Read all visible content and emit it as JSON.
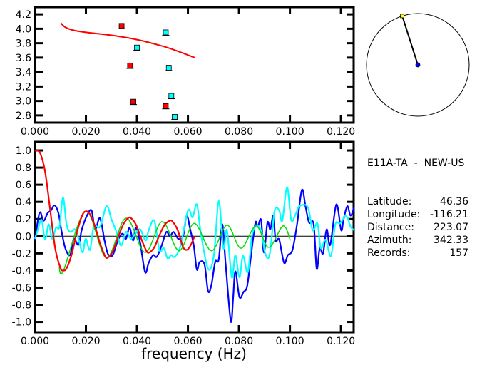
{
  "station": {
    "title": "E11A-TA  -  NEW-US",
    "rows": [
      {
        "label": "Latitude:",
        "value": "46.36"
      },
      {
        "label": "Longitude:",
        "value": "-116.21"
      },
      {
        "label": "Distance:",
        "value": "223.07"
      },
      {
        "label": "Azimuth:",
        "value": "342.33"
      },
      {
        "label": "Records:",
        "value": "157"
      }
    ],
    "azimuth_deg": 342.33,
    "station_color": "#ffff00",
    "center_color": "#0000ff"
  },
  "chart_data": [
    {
      "type": "scatter",
      "xlim": [
        0,
        0.125
      ],
      "ylim": [
        2.7,
        4.3
      ],
      "xticks": [
        "0.000",
        "0.020",
        "0.040",
        "0.060",
        "0.080",
        "0.100",
        "0.120"
      ],
      "yticks": [
        "2.8",
        "3.0",
        "3.2",
        "3.4",
        "3.6",
        "3.8",
        "4.0",
        "4.2"
      ],
      "curve": {
        "color": "#ff0000",
        "points": [
          [
            0.0101,
            4.08
          ],
          [
            0.012,
            4.02
          ],
          [
            0.015,
            3.98
          ],
          [
            0.02,
            3.95
          ],
          [
            0.03,
            3.91
          ],
          [
            0.04,
            3.85
          ],
          [
            0.05,
            3.76
          ],
          [
            0.056,
            3.69
          ],
          [
            0.0627,
            3.6
          ]
        ]
      },
      "series": [
        {
          "color": "#ff0000",
          "points": [
            [
              0.034,
              4.04
            ],
            [
              0.0373,
              3.49
            ],
            [
              0.0386,
              2.99
            ],
            [
              0.0513,
              2.93
            ]
          ]
        },
        {
          "color": "#00ffff",
          "points": [
            [
              0.0513,
              3.95
            ],
            [
              0.04,
              3.74
            ],
            [
              0.0525,
              3.46
            ],
            [
              0.0535,
              3.07
            ],
            [
              0.0548,
              2.78
            ]
          ]
        }
      ]
    },
    {
      "type": "line",
      "xlabel": "frequency (Hz)",
      "xlim": [
        0,
        0.125
      ],
      "ylim": [
        -1.12,
        1.1
      ],
      "xticks": [
        "0.000",
        "0.020",
        "0.040",
        "0.060",
        "0.080",
        "0.100",
        "0.120"
      ],
      "yticks": [
        "-1.0",
        "-0.8",
        "-0.6",
        "-0.4",
        "-0.2",
        "0.0",
        "0.2",
        "0.4",
        "0.6",
        "0.8",
        "1.0"
      ],
      "zero_line": true,
      "series": [
        {
          "color": "#0000ff",
          "points": [
            [
              0,
              -0.05
            ],
            [
              0.0012,
              0.19
            ],
            [
              0.0021,
              0.28
            ],
            [
              0.0034,
              0.18
            ],
            [
              0.005,
              0.27
            ],
            [
              0.0063,
              0.3
            ],
            [
              0.0077,
              0.36
            ],
            [
              0.0092,
              0.27
            ],
            [
              0.0105,
              0.05
            ],
            [
              0.0119,
              -0.14
            ],
            [
              0.0138,
              -0.22
            ],
            [
              0.0152,
              -0.03
            ],
            [
              0.0171,
              -0.1
            ],
            [
              0.0184,
              0.08
            ],
            [
              0.0204,
              0.24
            ],
            [
              0.0222,
              0.3
            ],
            [
              0.0236,
              0.08
            ],
            [
              0.0255,
              0.21
            ],
            [
              0.0273,
              -0.05
            ],
            [
              0.0287,
              -0.21
            ],
            [
              0.0305,
              -0.22
            ],
            [
              0.0325,
              -0.05
            ],
            [
              0.0343,
              0.03
            ],
            [
              0.0357,
              -0.03
            ],
            [
              0.0371,
              0.1
            ],
            [
              0.0385,
              -0.05
            ],
            [
              0.0396,
              0.1
            ],
            [
              0.0413,
              -0.08
            ],
            [
              0.0432,
              -0.42
            ],
            [
              0.0446,
              -0.31
            ],
            [
              0.0464,
              -0.22
            ],
            [
              0.0478,
              -0.24
            ],
            [
              0.0497,
              -0.11
            ],
            [
              0.0515,
              0.05
            ],
            [
              0.0529,
              0.0
            ],
            [
              0.0544,
              0.05
            ],
            [
              0.0562,
              -0.03
            ],
            [
              0.0581,
              0.0
            ],
            [
              0.0595,
              0.24
            ],
            [
              0.0609,
              0.08
            ],
            [
              0.0623,
              -0.11
            ],
            [
              0.0635,
              -0.39
            ],
            [
              0.0646,
              -0.3
            ],
            [
              0.0665,
              -0.33
            ],
            [
              0.0679,
              -0.64
            ],
            [
              0.0692,
              -0.57
            ],
            [
              0.0707,
              -0.3
            ],
            [
              0.0721,
              -0.27
            ],
            [
              0.0735,
              0.14
            ],
            [
              0.0748,
              -0.33
            ],
            [
              0.0768,
              -0.99
            ],
            [
              0.0777,
              -0.73
            ],
            [
              0.0786,
              -0.41
            ],
            [
              0.0802,
              -0.71
            ],
            [
              0.0818,
              -0.65
            ],
            [
              0.0833,
              -0.57
            ],
            [
              0.0851,
              -0.14
            ],
            [
              0.0865,
              0.16
            ],
            [
              0.0874,
              0.11
            ],
            [
              0.0887,
              0.19
            ],
            [
              0.0898,
              -0.19
            ],
            [
              0.0912,
              0.16
            ],
            [
              0.0923,
              0.08
            ],
            [
              0.0935,
              0.24
            ],
            [
              0.0944,
              -0.05
            ],
            [
              0.0958,
              -0.04
            ],
            [
              0.0977,
              -0.31
            ],
            [
              0.0992,
              -0.22
            ],
            [
              0.101,
              -0.16
            ],
            [
              0.1028,
              0.14
            ],
            [
              0.1047,
              0.54
            ],
            [
              0.1061,
              0.35
            ],
            [
              0.1075,
              0.16
            ],
            [
              0.1093,
              0.14
            ],
            [
              0.1105,
              -0.38
            ],
            [
              0.1117,
              -0.14
            ],
            [
              0.113,
              -0.2
            ],
            [
              0.1144,
              0.08
            ],
            [
              0.1158,
              -0.1
            ],
            [
              0.1182,
              0.37
            ],
            [
              0.1201,
              0.07
            ],
            [
              0.121,
              0.19
            ],
            [
              0.1225,
              0.35
            ],
            [
              0.1238,
              0.24
            ],
            [
              0.1252,
              0.34
            ]
          ]
        },
        {
          "color": "#00ffff",
          "points": [
            [
              0,
              -0.03
            ],
            [
              0.0012,
              0.08
            ],
            [
              0.0026,
              0.19
            ],
            [
              0.004,
              -0.04
            ],
            [
              0.0054,
              0.14
            ],
            [
              0.0068,
              -0.03
            ],
            [
              0.0082,
              0.1
            ],
            [
              0.0096,
              0.11
            ],
            [
              0.011,
              0.45
            ],
            [
              0.0124,
              0.14
            ],
            [
              0.0138,
              0.05
            ],
            [
              0.0157,
              0.08
            ],
            [
              0.0171,
              -0.03
            ],
            [
              0.0187,
              -0.19
            ],
            [
              0.0199,
              -0.03
            ],
            [
              0.0216,
              -0.16
            ],
            [
              0.0231,
              0.12
            ],
            [
              0.0255,
              0.11
            ],
            [
              0.0281,
              0.35
            ],
            [
              0.0301,
              0.19
            ],
            [
              0.032,
              0.05
            ],
            [
              0.0338,
              -0.11
            ],
            [
              0.0357,
              0.05
            ],
            [
              0.0376,
              -0.03
            ],
            [
              0.0394,
              0.03
            ],
            [
              0.0413,
              0.08
            ],
            [
              0.0434,
              -0.05
            ],
            [
              0.0446,
              0.07
            ],
            [
              0.0468,
              0.18
            ],
            [
              0.0488,
              -0.16
            ],
            [
              0.0506,
              -0.14
            ],
            [
              0.052,
              -0.26
            ],
            [
              0.0534,
              -0.22
            ],
            [
              0.0548,
              -0.24
            ],
            [
              0.0571,
              -0.11
            ],
            [
              0.06,
              0.3
            ],
            [
              0.0618,
              0.22
            ],
            [
              0.0635,
              0.37
            ],
            [
              0.0651,
              0.03
            ],
            [
              0.0679,
              -0.38
            ],
            [
              0.0702,
              -0.22
            ],
            [
              0.0721,
              0.41
            ],
            [
              0.0739,
              -0.14
            ],
            [
              0.0753,
              0.07
            ],
            [
              0.0772,
              -0.48
            ],
            [
              0.0786,
              -0.22
            ],
            [
              0.0802,
              -0.48
            ],
            [
              0.0816,
              -0.23
            ],
            [
              0.0835,
              -0.42
            ],
            [
              0.0851,
              0.0
            ],
            [
              0.0869,
              0.12
            ],
            [
              0.0889,
              0.05
            ],
            [
              0.0902,
              -0.19
            ],
            [
              0.092,
              -0.22
            ],
            [
              0.094,
              0.29
            ],
            [
              0.0958,
              0.3
            ],
            [
              0.097,
              0.18
            ],
            [
              0.0989,
              0.57
            ],
            [
              0.1005,
              0.19
            ],
            [
              0.1023,
              0.26
            ],
            [
              0.1037,
              0.35
            ],
            [
              0.107,
              0.34
            ],
            [
              0.1089,
              0.07
            ],
            [
              0.1108,
              0.15
            ],
            [
              0.1121,
              -0.14
            ],
            [
              0.114,
              -0.04
            ],
            [
              0.1161,
              -0.23
            ],
            [
              0.1178,
              0.14
            ],
            [
              0.1197,
              0.15
            ],
            [
              0.122,
              0.24
            ],
            [
              0.1238,
              0.11
            ],
            [
              0.1252,
              0.07
            ]
          ]
        },
        {
          "color": "#00dd00",
          "points": [
            [
              0.0095,
              -0.36
            ],
            [
              0.0112,
              -0.4
            ],
            [
              0.0199,
              0.29
            ],
            [
              0.028,
              -0.25
            ],
            [
              0.0357,
              0.21
            ],
            [
              0.0432,
              -0.19
            ],
            [
              0.0499,
              0.17
            ],
            [
              0.0565,
              -0.17
            ],
            [
              0.0625,
              0.15
            ],
            [
              0.0692,
              -0.17
            ],
            [
              0.0753,
              0.13
            ],
            [
              0.0808,
              -0.14
            ],
            [
              0.0867,
              0.12
            ],
            [
              0.0917,
              -0.13
            ],
            [
              0.0973,
              0.12
            ],
            [
              0.1002,
              -0.05
            ]
          ]
        },
        {
          "color": "#ff0000",
          "points": [
            [
              0,
              1.0
            ],
            [
              0.002,
              0.97
            ],
            [
              0.004,
              0.75
            ],
            [
              0.006,
              0.3
            ],
            [
              0.008,
              -0.15
            ],
            [
              0.01,
              -0.37
            ],
            [
              0.0112,
              -0.4
            ],
            [
              0.0125,
              -0.37
            ],
            [
              0.0145,
              -0.2
            ],
            [
              0.0165,
              0.05
            ],
            [
              0.0185,
              0.24
            ],
            [
              0.0199,
              0.29
            ],
            [
              0.0215,
              0.26
            ],
            [
              0.0235,
              0.12
            ],
            [
              0.0255,
              -0.08
            ],
            [
              0.0275,
              -0.23
            ],
            [
              0.0285,
              -0.25
            ],
            [
              0.0305,
              -0.18
            ],
            [
              0.0325,
              -0.02
            ],
            [
              0.0345,
              0.13
            ],
            [
              0.0365,
              0.21
            ],
            [
              0.0377,
              0.21
            ],
            [
              0.0397,
              0.13
            ],
            [
              0.0417,
              -0.03
            ],
            [
              0.0437,
              -0.17
            ],
            [
              0.0448,
              -0.19
            ],
            [
              0.0468,
              -0.13
            ],
            [
              0.0488,
              0.01
            ],
            [
              0.0508,
              0.13
            ],
            [
              0.0528,
              0.18
            ],
            [
              0.054,
              0.17
            ],
            [
              0.056,
              0.07
            ],
            [
              0.058,
              -0.12
            ],
            [
              0.0595,
              -0.16
            ],
            [
              0.061,
              -0.11
            ],
            [
              0.0626,
              0.0
            ]
          ]
        }
      ]
    }
  ]
}
